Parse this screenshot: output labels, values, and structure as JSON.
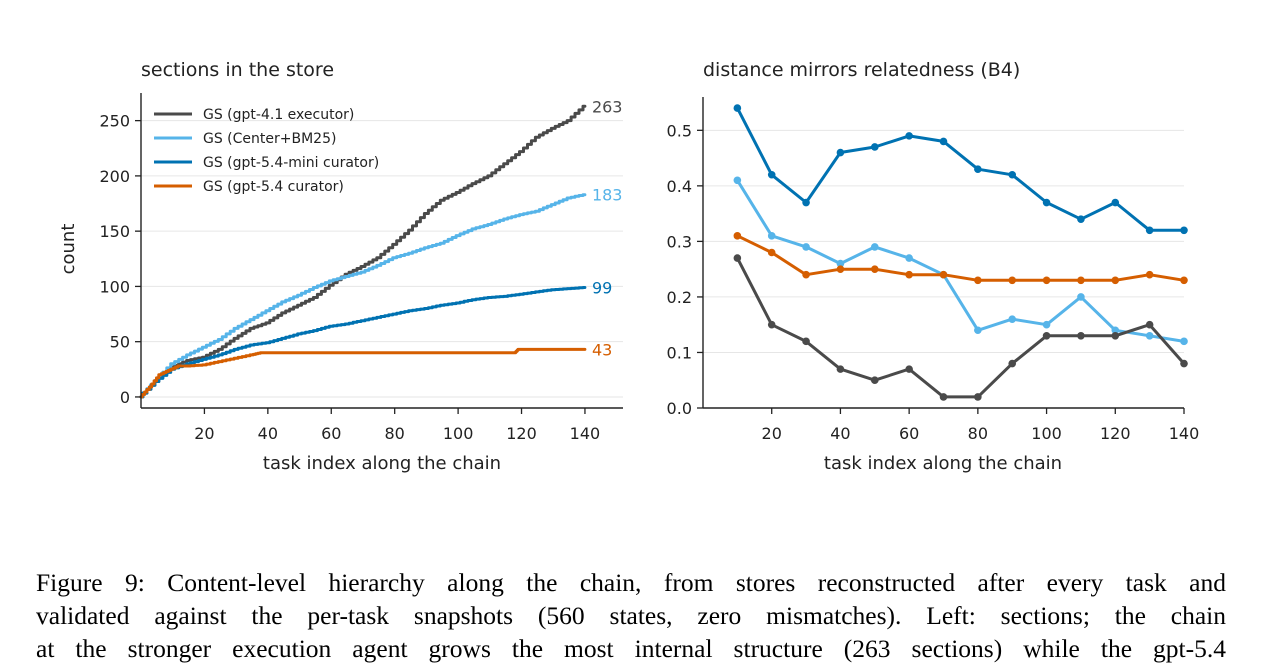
{
  "chart_data": [
    {
      "type": "line",
      "title": "sections in the store",
      "xlabel": "task index along the chain",
      "ylabel": "count",
      "xlim": [
        0,
        152
      ],
      "ylim": [
        -10,
        275
      ],
      "xticks": [
        20,
        40,
        60,
        80,
        100,
        120,
        140
      ],
      "yticks": [
        0,
        50,
        100,
        150,
        200,
        250
      ],
      "grid": "horizontal",
      "legend": "top-left",
      "series": [
        {
          "name": "GS (gpt-4.1 executor)",
          "color": "#4a4a4a",
          "end_label": "263",
          "x": [
            0,
            5,
            10,
            15,
            20,
            25,
            30,
            35,
            40,
            45,
            50,
            55,
            60,
            65,
            70,
            75,
            80,
            85,
            90,
            95,
            100,
            105,
            110,
            115,
            120,
            125,
            130,
            135,
            140
          ],
          "y": [
            0,
            14,
            27,
            33,
            36,
            43,
            53,
            62,
            67,
            76,
            83,
            90,
            101,
            111,
            118,
            126,
            138,
            151,
            166,
            178,
            185,
            193,
            200,
            211,
            222,
            235,
            243,
            250,
            263
          ]
        },
        {
          "name": "GS (Center+BM25)",
          "color": "#56b4e9",
          "end_label": "183",
          "x": [
            0,
            5,
            10,
            15,
            20,
            25,
            30,
            35,
            40,
            45,
            50,
            55,
            60,
            65,
            70,
            75,
            80,
            85,
            90,
            95,
            100,
            105,
            110,
            115,
            120,
            125,
            130,
            135,
            140
          ],
          "y": [
            0,
            15,
            30,
            38,
            45,
            52,
            62,
            70,
            78,
            86,
            92,
            99,
            105,
            109,
            113,
            119,
            126,
            130,
            135,
            139,
            146,
            152,
            156,
            161,
            165,
            168,
            174,
            180,
            183
          ]
        },
        {
          "name": "GS (gpt-5.4-mini curator)",
          "color": "#0072b2",
          "end_label": "99",
          "x": [
            0,
            5,
            10,
            15,
            20,
            25,
            30,
            35,
            40,
            45,
            50,
            55,
            60,
            65,
            70,
            75,
            80,
            85,
            90,
            95,
            100,
            105,
            110,
            115,
            120,
            125,
            130,
            135,
            140
          ],
          "y": [
            0,
            14,
            25,
            30,
            34,
            38,
            43,
            47,
            49,
            53,
            57,
            60,
            64,
            66,
            69,
            72,
            75,
            78,
            80,
            83,
            85,
            88,
            90,
            91,
            93,
            95,
            97,
            98,
            99
          ]
        },
        {
          "name": "GS (gpt-5.4 curator)",
          "color": "#d55e00",
          "end_label": "43",
          "x": [
            0,
            3,
            6,
            9,
            12,
            15,
            20,
            25,
            30,
            35,
            38,
            40,
            60,
            80,
            100,
            118,
            119,
            140
          ],
          "y": [
            0,
            9,
            20,
            24,
            28,
            28,
            29,
            32,
            35,
            38,
            40,
            40,
            40,
            40,
            40,
            40,
            43,
            43
          ]
        }
      ]
    },
    {
      "type": "line",
      "title": "distance mirrors relatedness (B4)",
      "xlabel": "task index along the chain",
      "ylabel": "",
      "xlim": [
        0,
        140
      ],
      "ylim": [
        0.0,
        0.56
      ],
      "xticks": [
        20,
        40,
        60,
        80,
        100,
        120,
        140
      ],
      "yticks": [
        0.0,
        0.1,
        0.2,
        0.3,
        0.4,
        0.5
      ],
      "grid": "horizontal",
      "legend": "none",
      "markers": true,
      "series": [
        {
          "color": "#0072b2",
          "x": [
            10,
            20,
            30,
            40,
            50,
            60,
            70,
            80,
            90,
            100,
            110,
            120,
            130,
            140
          ],
          "y": [
            0.54,
            0.42,
            0.37,
            0.46,
            0.47,
            0.49,
            0.48,
            0.43,
            0.42,
            0.37,
            0.34,
            0.37,
            0.32,
            0.32
          ]
        },
        {
          "color": "#56b4e9",
          "x": [
            10,
            20,
            30,
            40,
            50,
            60,
            70,
            80,
            90,
            100,
            110,
            120,
            130,
            140
          ],
          "y": [
            0.41,
            0.31,
            0.29,
            0.26,
            0.29,
            0.27,
            0.24,
            0.14,
            0.16,
            0.15,
            0.2,
            0.14,
            0.13,
            0.12
          ]
        },
        {
          "color": "#d55e00",
          "x": [
            10,
            20,
            30,
            40,
            50,
            60,
            70,
            80,
            90,
            100,
            110,
            120,
            130,
            140
          ],
          "y": [
            0.31,
            0.28,
            0.24,
            0.25,
            0.25,
            0.24,
            0.24,
            0.23,
            0.23,
            0.23,
            0.23,
            0.23,
            0.24,
            0.23
          ]
        },
        {
          "color": "#4a4a4a",
          "x": [
            10,
            20,
            30,
            40,
            50,
            60,
            70,
            80,
            90,
            100,
            110,
            120,
            130,
            140
          ],
          "y": [
            0.27,
            0.15,
            0.12,
            0.07,
            0.05,
            0.07,
            0.02,
            0.02,
            0.08,
            0.13,
            0.13,
            0.13,
            0.15,
            0.08
          ]
        }
      ]
    }
  ],
  "caption": {
    "lines": [
      "Figure 9: Content-level hierarchy along the chain, from stores reconstructed after every task and",
      "validated against the per-task snapshots (560 states, zero mismatches). Left: sections; the chain",
      "at the stronger execution agent grows the most internal structure (263 sections) while the gpt-5.4"
    ]
  }
}
